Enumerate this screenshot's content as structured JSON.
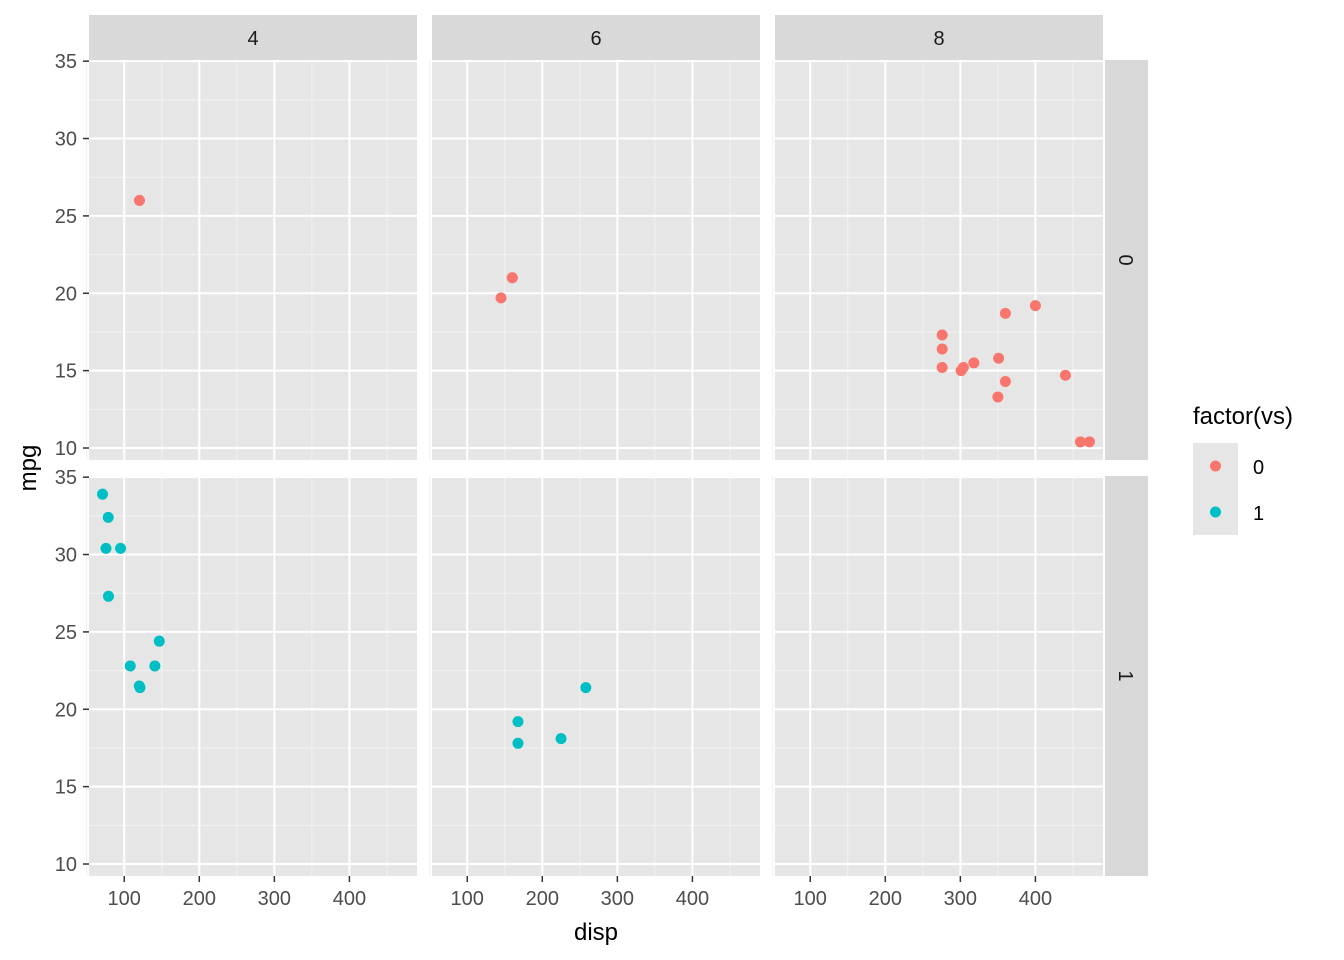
{
  "chart_data": {
    "type": "scatter",
    "xlabel": "disp",
    "ylabel": "mpg",
    "xlim": [
      53.06,
      490.04
    ],
    "ylim": [
      9.225,
      35.075
    ],
    "x_ticks": [
      100,
      200,
      300,
      400
    ],
    "y_ticks": [
      10,
      15,
      20,
      25,
      30,
      35
    ],
    "grid": true,
    "col_facets": [
      "4",
      "6",
      "8"
    ],
    "row_facets": [
      "0",
      "1"
    ],
    "legend": {
      "title": "factor(vs)",
      "placement": "right",
      "entries": [
        {
          "label": "0",
          "color": "#F8766D"
        },
        {
          "label": "1",
          "color": "#00BFC4"
        }
      ]
    },
    "points": [
      {
        "cyl": "4",
        "vs": "0",
        "disp": 120.3,
        "mpg": 26.0
      },
      {
        "cyl": "4",
        "vs": "1",
        "disp": 108,
        "mpg": 22.8
      },
      {
        "cyl": "4",
        "vs": "1",
        "disp": 146.7,
        "mpg": 24.4
      },
      {
        "cyl": "4",
        "vs": "1",
        "disp": 140.8,
        "mpg": 22.8
      },
      {
        "cyl": "4",
        "vs": "1",
        "disp": 78.7,
        "mpg": 32.4
      },
      {
        "cyl": "4",
        "vs": "1",
        "disp": 75.7,
        "mpg": 30.4
      },
      {
        "cyl": "4",
        "vs": "1",
        "disp": 71.1,
        "mpg": 33.9
      },
      {
        "cyl": "4",
        "vs": "1",
        "disp": 120.1,
        "mpg": 21.5
      },
      {
        "cyl": "4",
        "vs": "1",
        "disp": 79,
        "mpg": 27.3
      },
      {
        "cyl": "4",
        "vs": "1",
        "disp": 95.1,
        "mpg": 30.4
      },
      {
        "cyl": "4",
        "vs": "1",
        "disp": 121,
        "mpg": 21.4
      },
      {
        "cyl": "6",
        "vs": "0",
        "disp": 160,
        "mpg": 21.0
      },
      {
        "cyl": "6",
        "vs": "0",
        "disp": 160,
        "mpg": 21.0
      },
      {
        "cyl": "6",
        "vs": "0",
        "disp": 145,
        "mpg": 19.7
      },
      {
        "cyl": "6",
        "vs": "1",
        "disp": 258,
        "mpg": 21.4
      },
      {
        "cyl": "6",
        "vs": "1",
        "disp": 225,
        "mpg": 18.1
      },
      {
        "cyl": "6",
        "vs": "1",
        "disp": 167.6,
        "mpg": 19.2
      },
      {
        "cyl": "6",
        "vs": "1",
        "disp": 167.6,
        "mpg": 17.8
      },
      {
        "cyl": "8",
        "vs": "0",
        "disp": 360,
        "mpg": 18.7
      },
      {
        "cyl": "8",
        "vs": "0",
        "disp": 360,
        "mpg": 14.3
      },
      {
        "cyl": "8",
        "vs": "0",
        "disp": 275.8,
        "mpg": 16.4
      },
      {
        "cyl": "8",
        "vs": "0",
        "disp": 275.8,
        "mpg": 17.3
      },
      {
        "cyl": "8",
        "vs": "0",
        "disp": 275.8,
        "mpg": 15.2
      },
      {
        "cyl": "8",
        "vs": "0",
        "disp": 472,
        "mpg": 10.4
      },
      {
        "cyl": "8",
        "vs": "0",
        "disp": 460,
        "mpg": 10.4
      },
      {
        "cyl": "8",
        "vs": "0",
        "disp": 440,
        "mpg": 14.7
      },
      {
        "cyl": "8",
        "vs": "0",
        "disp": 318,
        "mpg": 15.5
      },
      {
        "cyl": "8",
        "vs": "0",
        "disp": 304,
        "mpg": 15.2
      },
      {
        "cyl": "8",
        "vs": "0",
        "disp": 350,
        "mpg": 13.3
      },
      {
        "cyl": "8",
        "vs": "0",
        "disp": 400,
        "mpg": 19.2
      },
      {
        "cyl": "8",
        "vs": "0",
        "disp": 351,
        "mpg": 15.8
      },
      {
        "cyl": "8",
        "vs": "0",
        "disp": 301,
        "mpg": 15.0
      }
    ]
  }
}
